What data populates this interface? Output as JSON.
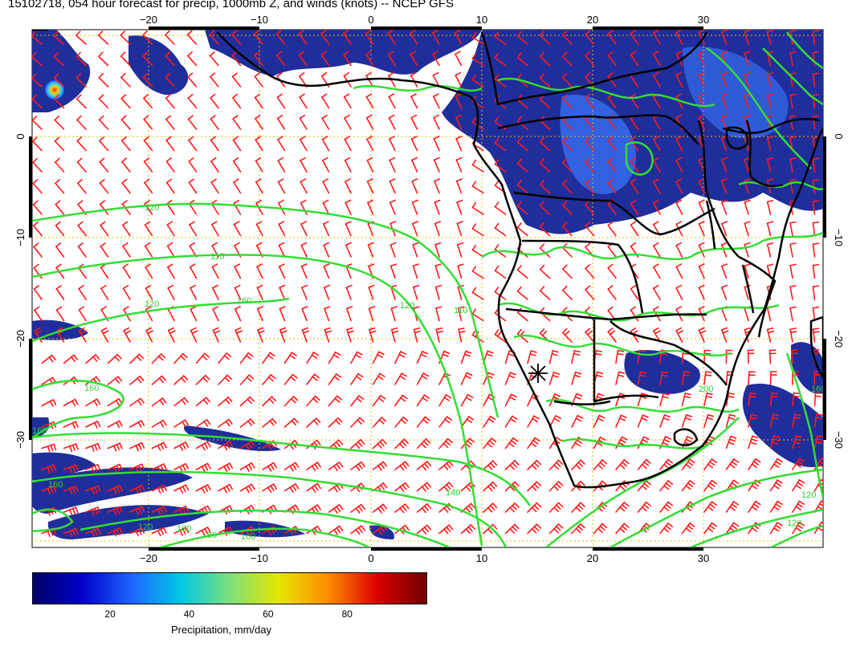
{
  "title": "15102718, 054 hour forecast for precip, 1000mb Z, and winds (knots) -- NCEP GFS",
  "map": {
    "lon_ticks": [
      "−20",
      "−10",
      "0",
      "10",
      "20",
      "30"
    ],
    "lat_ticks": [
      "0",
      "−10",
      "−20",
      "−30"
    ],
    "contour_labels": [
      "120",
      "110",
      "120",
      "160",
      "120",
      "110",
      "160",
      "160",
      "160",
      "140",
      "120",
      "100",
      "80",
      "160",
      "200",
      "120",
      "160",
      "120"
    ],
    "colors": {
      "land_border": "#000000",
      "wind_barb": "#ff0000",
      "geopotential_contour": "#33dd33",
      "grid": "#e0c000",
      "precip_low": "#1a237e",
      "precip_mid": "#2e7dff"
    }
  },
  "colorbar": {
    "ticks": [
      "20",
      "40",
      "60",
      "80"
    ],
    "title": "Precipitation, mm/day",
    "range": [
      0,
      100
    ],
    "colors": [
      "#00006a",
      "#0000c8",
      "#1e64ff",
      "#00c8e6",
      "#7ce07c",
      "#e6e600",
      "#ff8c00",
      "#dc0000",
      "#6e0000"
    ]
  }
}
